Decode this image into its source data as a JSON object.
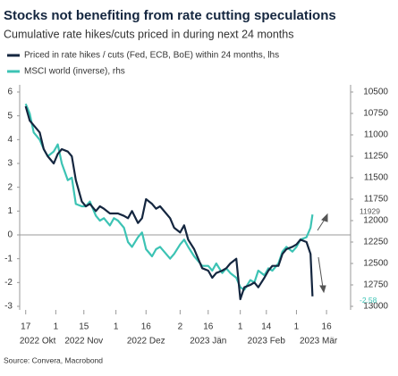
{
  "chart_data": {
    "type": "line",
    "title": "Stocks not benefiting from rate cutting speculations",
    "subtitle": "Cumulative rate hikes/cuts priced in during next 24 months",
    "source": "Source: Convera, Macrobond",
    "x": [
      "2022-10-17",
      "2022-10-19",
      "2022-10-21",
      "2022-10-24",
      "2022-10-26",
      "2022-10-28",
      "2022-10-31",
      "2022-11-02",
      "2022-11-04",
      "2022-11-07",
      "2022-11-09",
      "2022-11-11",
      "2022-11-14",
      "2022-11-16",
      "2022-11-18",
      "2022-11-21",
      "2022-11-23",
      "2022-11-25",
      "2022-11-28",
      "2022-11-30",
      "2022-12-02",
      "2022-12-05",
      "2022-12-07",
      "2022-12-09",
      "2022-12-12",
      "2022-12-14",
      "2022-12-16",
      "2022-12-19",
      "2022-12-21",
      "2022-12-23",
      "2022-12-28",
      "2022-12-30",
      "2023-01-02",
      "2023-01-04",
      "2023-01-06",
      "2023-01-09",
      "2023-01-11",
      "2023-01-13",
      "2023-01-16",
      "2023-01-18",
      "2023-01-20",
      "2023-01-23",
      "2023-01-25",
      "2023-01-27",
      "2023-01-30",
      "2023-02-01",
      "2023-02-03",
      "2023-02-06",
      "2023-02-08",
      "2023-02-10",
      "2023-02-13",
      "2023-02-15",
      "2023-02-17",
      "2023-02-20",
      "2023-02-22",
      "2023-02-24",
      "2023-02-27",
      "2023-03-01",
      "2023-03-03",
      "2023-03-06",
      "2023-03-08",
      "2023-03-09"
    ],
    "series": [
      {
        "name": "Priced in rate hikes / cuts (Fed, ECB, BoE) within 24 months, lhs",
        "color": "#14263f",
        "end_label_color": "#3cc3b4",
        "values": [
          5.4,
          4.8,
          4.6,
          4.3,
          3.6,
          3.3,
          3.0,
          3.4,
          3.6,
          3.5,
          3.3,
          2.3,
          1.4,
          1.2,
          1.3,
          1.0,
          1.2,
          1.1,
          0.9,
          0.9,
          0.9,
          0.8,
          0.7,
          1.0,
          0.5,
          0.7,
          1.5,
          1.3,
          1.1,
          1.2,
          0.7,
          0.3,
          0.1,
          0.4,
          -0.2,
          -0.6,
          -1.0,
          -1.4,
          -1.5,
          -1.8,
          -1.6,
          -1.5,
          -1.4,
          -1.2,
          -1.0,
          -2.7,
          -2.2,
          -2.1,
          -2.0,
          -2.2,
          -1.8,
          -1.5,
          -1.3,
          -1.3,
          -0.8,
          -0.6,
          -0.5,
          -0.4,
          -0.2,
          -0.3,
          -0.8,
          -2.58
        ]
      },
      {
        "name": "MSCI world (inverse), rhs",
        "color": "#3cc3b4",
        "axis": "y2",
        "end_label_color": "#555555",
        "values": [
          10639,
          10750,
          10972,
          11056,
          11167,
          11250,
          11194,
          11111,
          11333,
          11528,
          11500,
          11806,
          11833,
          11833,
          11778,
          11944,
          12000,
          11972,
          12056,
          11972,
          12000,
          12083,
          12250,
          12306,
          12194,
          12139,
          12333,
          12417,
          12333,
          12306,
          12444,
          12389,
          12278,
          12222,
          12306,
          12417,
          12472,
          12528,
          12528,
          12583,
          12500,
          12611,
          12556,
          12611,
          12667,
          12778,
          12806,
          12694,
          12722,
          12583,
          12639,
          12556,
          12583,
          12500,
          12361,
          12306,
          12361,
          12306,
          12222,
          12194,
          12083,
          11929
        ]
      }
    ],
    "xlim": [
      "2022-10-14",
      "2023-03-28"
    ],
    "xticks": [
      {
        "value": "2022-10-17",
        "label": "17"
      },
      {
        "value": "2022-11-01",
        "label": "1"
      },
      {
        "value": "2022-11-15",
        "label": "15"
      },
      {
        "value": "2022-12-01",
        "label": "1"
      },
      {
        "value": "2022-12-16",
        "label": "16"
      },
      {
        "value": "2023-01-02",
        "label": "2"
      },
      {
        "value": "2023-01-16",
        "label": "16"
      },
      {
        "value": "2023-02-01",
        "label": "1"
      },
      {
        "value": "2023-02-14",
        "label": "14"
      },
      {
        "value": "2023-03-01",
        "label": "1"
      },
      {
        "value": "2023-03-16",
        "label": "16"
      }
    ],
    "xgroups": [
      {
        "value": "2022-10-23",
        "label": "2022 Okt"
      },
      {
        "value": "2022-11-15",
        "label": "2022 Nov"
      },
      {
        "value": "2022-12-16",
        "label": "2022 Dez"
      },
      {
        "value": "2023-01-16",
        "label": "2023 Jän"
      },
      {
        "value": "2023-02-14",
        "label": "2023 Feb"
      },
      {
        "value": "2023-03-12",
        "label": "2023 Mär"
      }
    ],
    "ylim": [
      -3,
      6
    ],
    "yticks": [
      6,
      5,
      4,
      3,
      2,
      1,
      0,
      -1,
      -2,
      -3
    ],
    "y2lim": [
      13000,
      10500
    ],
    "y2ticks": [
      10500,
      10750,
      11000,
      11250,
      11500,
      11750,
      12000,
      12250,
      12500,
      12750,
      13000
    ],
    "hline": 0
  }
}
